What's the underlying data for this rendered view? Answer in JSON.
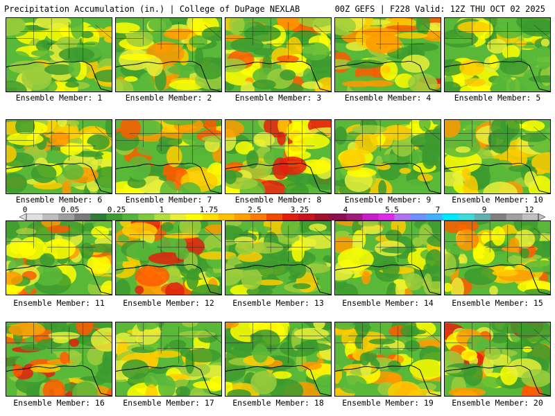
{
  "header": {
    "title_left": "Precipitation Accumulation (in.) | College of DuPage NEXLAB",
    "title_right": "00Z GEFS | F228 Valid: 12Z THU OCT 02 2025"
  },
  "panels": [
    {
      "label": "Ensemble Member: 1"
    },
    {
      "label": "Ensemble Member: 2"
    },
    {
      "label": "Ensemble Member: 3"
    },
    {
      "label": "Ensemble Member: 4"
    },
    {
      "label": "Ensemble Member: 5"
    },
    {
      "label": "Ensemble Member: 6"
    },
    {
      "label": "Ensemble Member: 7"
    },
    {
      "label": "Ensemble Member: 8"
    },
    {
      "label": "Ensemble Member: 9"
    },
    {
      "label": "Ensemble Member: 10"
    },
    {
      "label": "Ensemble Member: 11"
    },
    {
      "label": "Ensemble Member: 12"
    },
    {
      "label": "Ensemble Member: 13"
    },
    {
      "label": "Ensemble Member: 14"
    },
    {
      "label": "Ensemble Member: 15"
    },
    {
      "label": "Ensemble Member: 16"
    },
    {
      "label": "Ensemble Member: 17"
    },
    {
      "label": "Ensemble Member: 18"
    },
    {
      "label": "Ensemble Member: 19"
    },
    {
      "label": "Ensemble Member: 20"
    }
  ],
  "colorbar": {
    "labels": [
      "0",
      "0.05",
      "0.25",
      "1",
      "1.75",
      "2.5",
      "3.25",
      "4",
      "5.5",
      "7",
      "9",
      "12"
    ],
    "colors": [
      "#e0e0e0",
      "#bdbdbd",
      "#9e9e9e",
      "#7a7a7a",
      "#2e7d32",
      "#3d9b35",
      "#56b43a",
      "#7fc93e",
      "#b3dd3c",
      "#e8ef3a",
      "#ffff00",
      "#ffe000",
      "#ffc000",
      "#ffa000",
      "#ff7a00",
      "#f04a00",
      "#e01e0a",
      "#c8141e",
      "#a01028",
      "#8c1050",
      "#a01a78",
      "#c81ec8",
      "#e028e8",
      "#b070f0",
      "#7090ff",
      "#40b0ff",
      "#00e8ff",
      "#40d8d8",
      "#60b0b0",
      "#808080",
      "#a0a0a0",
      "#c0c0c0"
    ]
  }
}
